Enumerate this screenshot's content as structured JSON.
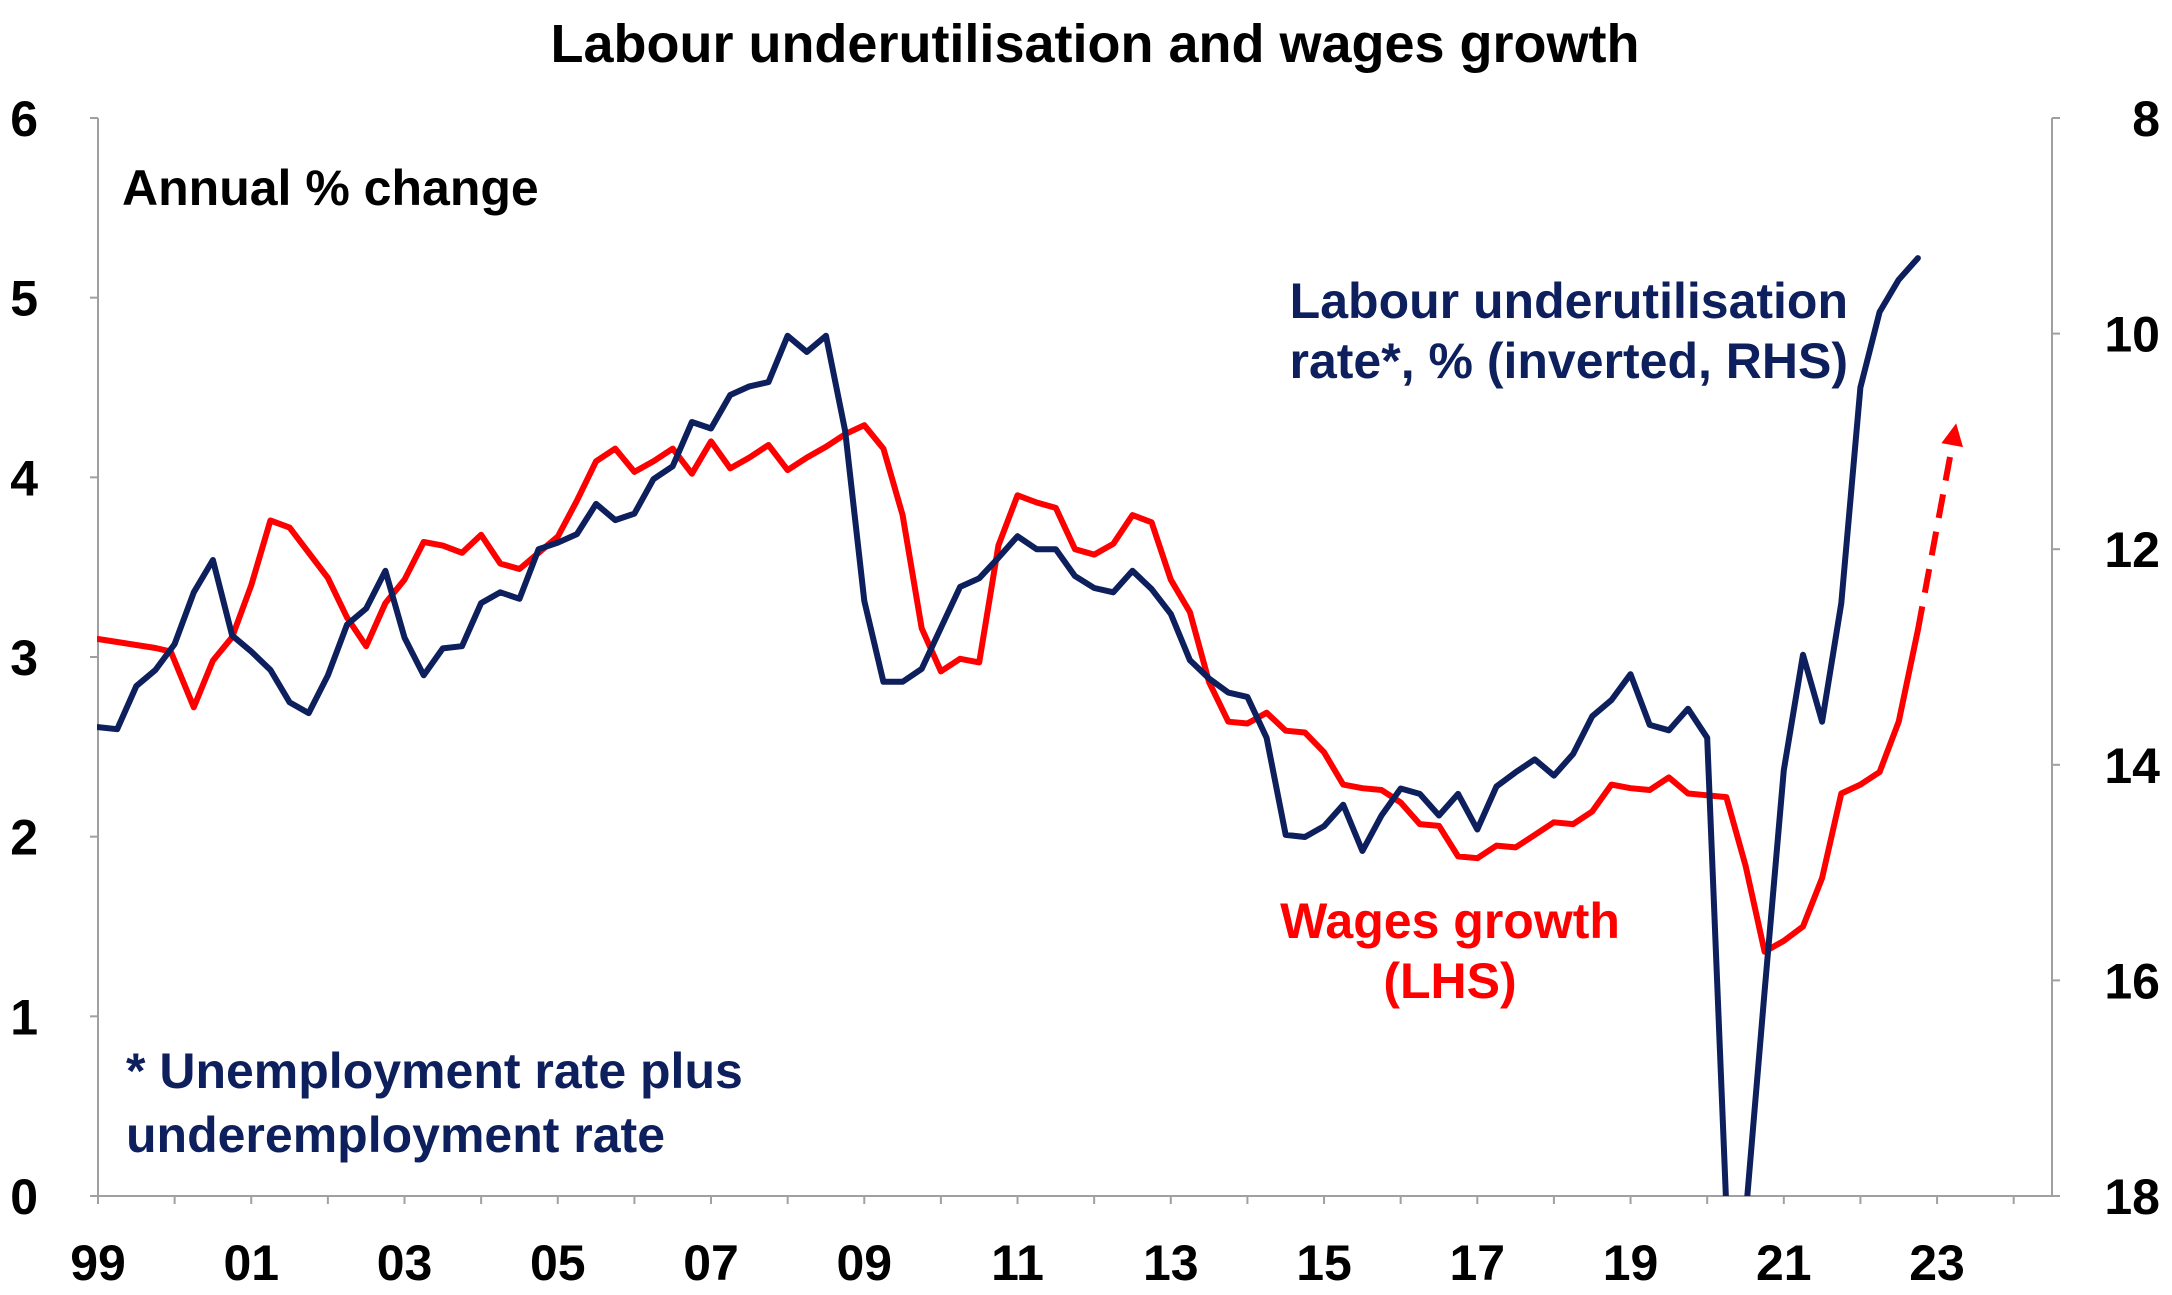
{
  "chart_data": {
    "type": "line",
    "title": "Labour underutilisation and wages growth",
    "subtitle": "Annual % change",
    "x_range": [
      1999.0,
      2024.5
    ],
    "x_ticks": [
      {
        "label": "99",
        "x": 1999
      },
      {
        "label": "01",
        "x": 2001
      },
      {
        "label": "03",
        "x": 2003
      },
      {
        "label": "05",
        "x": 2005
      },
      {
        "label": "07",
        "x": 2007
      },
      {
        "label": "09",
        "x": 2009
      },
      {
        "label": "11",
        "x": 2011
      },
      {
        "label": "13",
        "x": 2013
      },
      {
        "label": "15",
        "x": 2015
      },
      {
        "label": "17",
        "x": 2017
      },
      {
        "label": "19",
        "x": 2019
      },
      {
        "label": "21",
        "x": 2021
      },
      {
        "label": "23",
        "x": 2023
      }
    ],
    "y_left": {
      "range": [
        0,
        6
      ],
      "ticks": [
        "0",
        "1",
        "2",
        "3",
        "4",
        "5",
        "6"
      ]
    },
    "y_right": {
      "range": [
        8,
        18
      ],
      "inverted": true,
      "ticks": [
        "8",
        "10",
        "12",
        "14",
        "16",
        "18"
      ]
    },
    "series": [
      {
        "name": "Wages growth (LHS)",
        "axis": "left",
        "color": "#ff0000",
        "points": [
          [
            1999.0,
            3.1
          ],
          [
            1999.75,
            3.05
          ],
          [
            1999.95,
            3.03
          ],
          [
            2000.25,
            2.72
          ],
          [
            2000.5,
            2.98
          ],
          [
            2000.75,
            3.11
          ],
          [
            2001.0,
            3.4
          ],
          [
            2001.25,
            3.76
          ],
          [
            2001.5,
            3.72
          ],
          [
            2002.0,
            3.44
          ],
          [
            2002.25,
            3.22
          ],
          [
            2002.5,
            3.06
          ],
          [
            2002.75,
            3.3
          ],
          [
            2003.0,
            3.43
          ],
          [
            2003.25,
            3.64
          ],
          [
            2003.5,
            3.62
          ],
          [
            2003.75,
            3.58
          ],
          [
            2004.0,
            3.68
          ],
          [
            2004.25,
            3.52
          ],
          [
            2004.5,
            3.49
          ],
          [
            2004.75,
            3.58
          ],
          [
            2005.0,
            3.67
          ],
          [
            2005.25,
            3.87
          ],
          [
            2005.5,
            4.09
          ],
          [
            2005.75,
            4.16
          ],
          [
            2006.0,
            4.03
          ],
          [
            2006.25,
            4.09
          ],
          [
            2006.5,
            4.16
          ],
          [
            2006.75,
            4.02
          ],
          [
            2007.0,
            4.2
          ],
          [
            2007.25,
            4.05
          ],
          [
            2007.5,
            4.11
          ],
          [
            2007.75,
            4.18
          ],
          [
            2008.0,
            4.04
          ],
          [
            2008.25,
            4.11
          ],
          [
            2008.5,
            4.17
          ],
          [
            2008.75,
            4.24
          ],
          [
            2009.0,
            4.29
          ],
          [
            2009.25,
            4.16
          ],
          [
            2009.5,
            3.79
          ],
          [
            2009.75,
            3.16
          ],
          [
            2010.0,
            2.92
          ],
          [
            2010.25,
            2.99
          ],
          [
            2010.5,
            2.97
          ],
          [
            2010.75,
            3.62
          ],
          [
            2011.0,
            3.9
          ],
          [
            2011.25,
            3.86
          ],
          [
            2011.5,
            3.83
          ],
          [
            2011.75,
            3.6
          ],
          [
            2012.0,
            3.57
          ],
          [
            2012.25,
            3.63
          ],
          [
            2012.5,
            3.79
          ],
          [
            2012.75,
            3.75
          ],
          [
            2013.0,
            3.43
          ],
          [
            2013.25,
            3.25
          ],
          [
            2013.5,
            2.86
          ],
          [
            2013.75,
            2.64
          ],
          [
            2014.0,
            2.63
          ],
          [
            2014.25,
            2.69
          ],
          [
            2014.5,
            2.59
          ],
          [
            2014.75,
            2.58
          ],
          [
            2015.0,
            2.47
          ],
          [
            2015.25,
            2.29
          ],
          [
            2015.5,
            2.27
          ],
          [
            2015.75,
            2.26
          ],
          [
            2016.0,
            2.19
          ],
          [
            2016.25,
            2.07
          ],
          [
            2016.5,
            2.06
          ],
          [
            2016.75,
            1.89
          ],
          [
            2017.0,
            1.88
          ],
          [
            2017.25,
            1.95
          ],
          [
            2017.5,
            1.94
          ],
          [
            2017.75,
            2.01
          ],
          [
            2018.0,
            2.08
          ],
          [
            2018.25,
            2.07
          ],
          [
            2018.5,
            2.14
          ],
          [
            2018.75,
            2.29
          ],
          [
            2019.0,
            2.27
          ],
          [
            2019.25,
            2.26
          ],
          [
            2019.5,
            2.33
          ],
          [
            2019.75,
            2.24
          ],
          [
            2020.0,
            2.23
          ],
          [
            2020.25,
            2.22
          ],
          [
            2020.5,
            1.84
          ],
          [
            2020.75,
            1.36
          ],
          [
            2021.0,
            1.42
          ],
          [
            2021.25,
            1.5
          ],
          [
            2021.5,
            1.77
          ],
          [
            2021.75,
            2.24
          ],
          [
            2022.0,
            2.29
          ],
          [
            2022.25,
            2.36
          ],
          [
            2022.5,
            2.64
          ],
          [
            2022.75,
            3.15
          ]
        ],
        "projection": [
          [
            2022.75,
            3.15
          ],
          [
            2023.25,
            4.3
          ]
        ]
      },
      {
        "name": "Labour underutilisation rate*, % (inverted, RHS)",
        "axis": "right",
        "color": "#0d1f5c",
        "points": [
          [
            1999.0,
            13.65
          ],
          [
            1999.25,
            13.67
          ],
          [
            1999.5,
            13.27
          ],
          [
            1999.75,
            13.12
          ],
          [
            2000.0,
            12.88
          ],
          [
            2000.25,
            12.4
          ],
          [
            2000.5,
            12.1
          ],
          [
            2000.75,
            12.8
          ],
          [
            2001.0,
            12.95
          ],
          [
            2001.25,
            13.12
          ],
          [
            2001.5,
            13.42
          ],
          [
            2001.75,
            13.52
          ],
          [
            2002.0,
            13.17
          ],
          [
            2002.25,
            12.7
          ],
          [
            2002.5,
            12.55
          ],
          [
            2002.75,
            12.2
          ],
          [
            2003.0,
            12.82
          ],
          [
            2003.25,
            13.17
          ],
          [
            2003.5,
            12.92
          ],
          [
            2003.75,
            12.9
          ],
          [
            2004.0,
            12.5
          ],
          [
            2004.25,
            12.4
          ],
          [
            2004.5,
            12.46
          ],
          [
            2004.75,
            12.0
          ],
          [
            2005.0,
            11.94
          ],
          [
            2005.25,
            11.86
          ],
          [
            2005.5,
            11.58
          ],
          [
            2005.75,
            11.73
          ],
          [
            2006.0,
            11.67
          ],
          [
            2006.25,
            11.35
          ],
          [
            2006.5,
            11.23
          ],
          [
            2006.75,
            10.82
          ],
          [
            2007.0,
            10.88
          ],
          [
            2007.25,
            10.57
          ],
          [
            2007.5,
            10.49
          ],
          [
            2007.75,
            10.45
          ],
          [
            2008.0,
            10.02
          ],
          [
            2008.25,
            10.17
          ],
          [
            2008.5,
            10.02
          ],
          [
            2008.75,
            10.9
          ],
          [
            2009.0,
            12.48
          ],
          [
            2009.25,
            13.23
          ],
          [
            2009.5,
            13.23
          ],
          [
            2009.75,
            13.11
          ],
          [
            2010.0,
            12.73
          ],
          [
            2010.25,
            12.35
          ],
          [
            2010.5,
            12.27
          ],
          [
            2010.75,
            12.08
          ],
          [
            2011.0,
            11.88
          ],
          [
            2011.25,
            12.0
          ],
          [
            2011.5,
            12.0
          ],
          [
            2011.75,
            12.25
          ],
          [
            2012.0,
            12.36
          ],
          [
            2012.25,
            12.4
          ],
          [
            2012.5,
            12.2
          ],
          [
            2012.75,
            12.37
          ],
          [
            2013.0,
            12.6
          ],
          [
            2013.25,
            13.03
          ],
          [
            2013.5,
            13.2
          ],
          [
            2013.75,
            13.33
          ],
          [
            2014.0,
            13.37
          ],
          [
            2014.25,
            13.75
          ],
          [
            2014.5,
            14.65
          ],
          [
            2014.75,
            14.67
          ],
          [
            2015.0,
            14.57
          ],
          [
            2015.25,
            14.37
          ],
          [
            2015.5,
            14.8
          ],
          [
            2015.75,
            14.47
          ],
          [
            2016.0,
            14.22
          ],
          [
            2016.25,
            14.27
          ],
          [
            2016.5,
            14.47
          ],
          [
            2016.75,
            14.27
          ],
          [
            2017.0,
            14.6
          ],
          [
            2017.25,
            14.2
          ],
          [
            2017.5,
            14.07
          ],
          [
            2017.75,
            13.95
          ],
          [
            2018.0,
            14.1
          ],
          [
            2018.25,
            13.9
          ],
          [
            2018.5,
            13.55
          ],
          [
            2018.75,
            13.4
          ],
          [
            2019.0,
            13.16
          ],
          [
            2019.25,
            13.63
          ],
          [
            2019.5,
            13.68
          ],
          [
            2019.75,
            13.48
          ],
          [
            2020.0,
            13.75
          ],
          [
            2020.25,
            18.1
          ],
          [
            2020.5,
            18.2
          ],
          [
            2020.75,
            16.1
          ],
          [
            2021.0,
            14.05
          ],
          [
            2021.25,
            12.98
          ],
          [
            2021.5,
            13.6
          ],
          [
            2021.75,
            12.5
          ],
          [
            2022.0,
            10.5
          ],
          [
            2022.25,
            9.8
          ],
          [
            2022.5,
            9.5
          ],
          [
            2022.75,
            9.3
          ]
        ]
      }
    ],
    "annotations": {
      "underutilisation_label_1": "Labour underutilisation",
      "underutilisation_label_2": "rate*, % (inverted, RHS)",
      "wages_label_1": "Wages growth",
      "wages_label_2": "(LHS)",
      "footnote_1": "* Unemployment rate plus",
      "footnote_2": "underemployment rate"
    },
    "grid": false,
    "legend": "none"
  }
}
